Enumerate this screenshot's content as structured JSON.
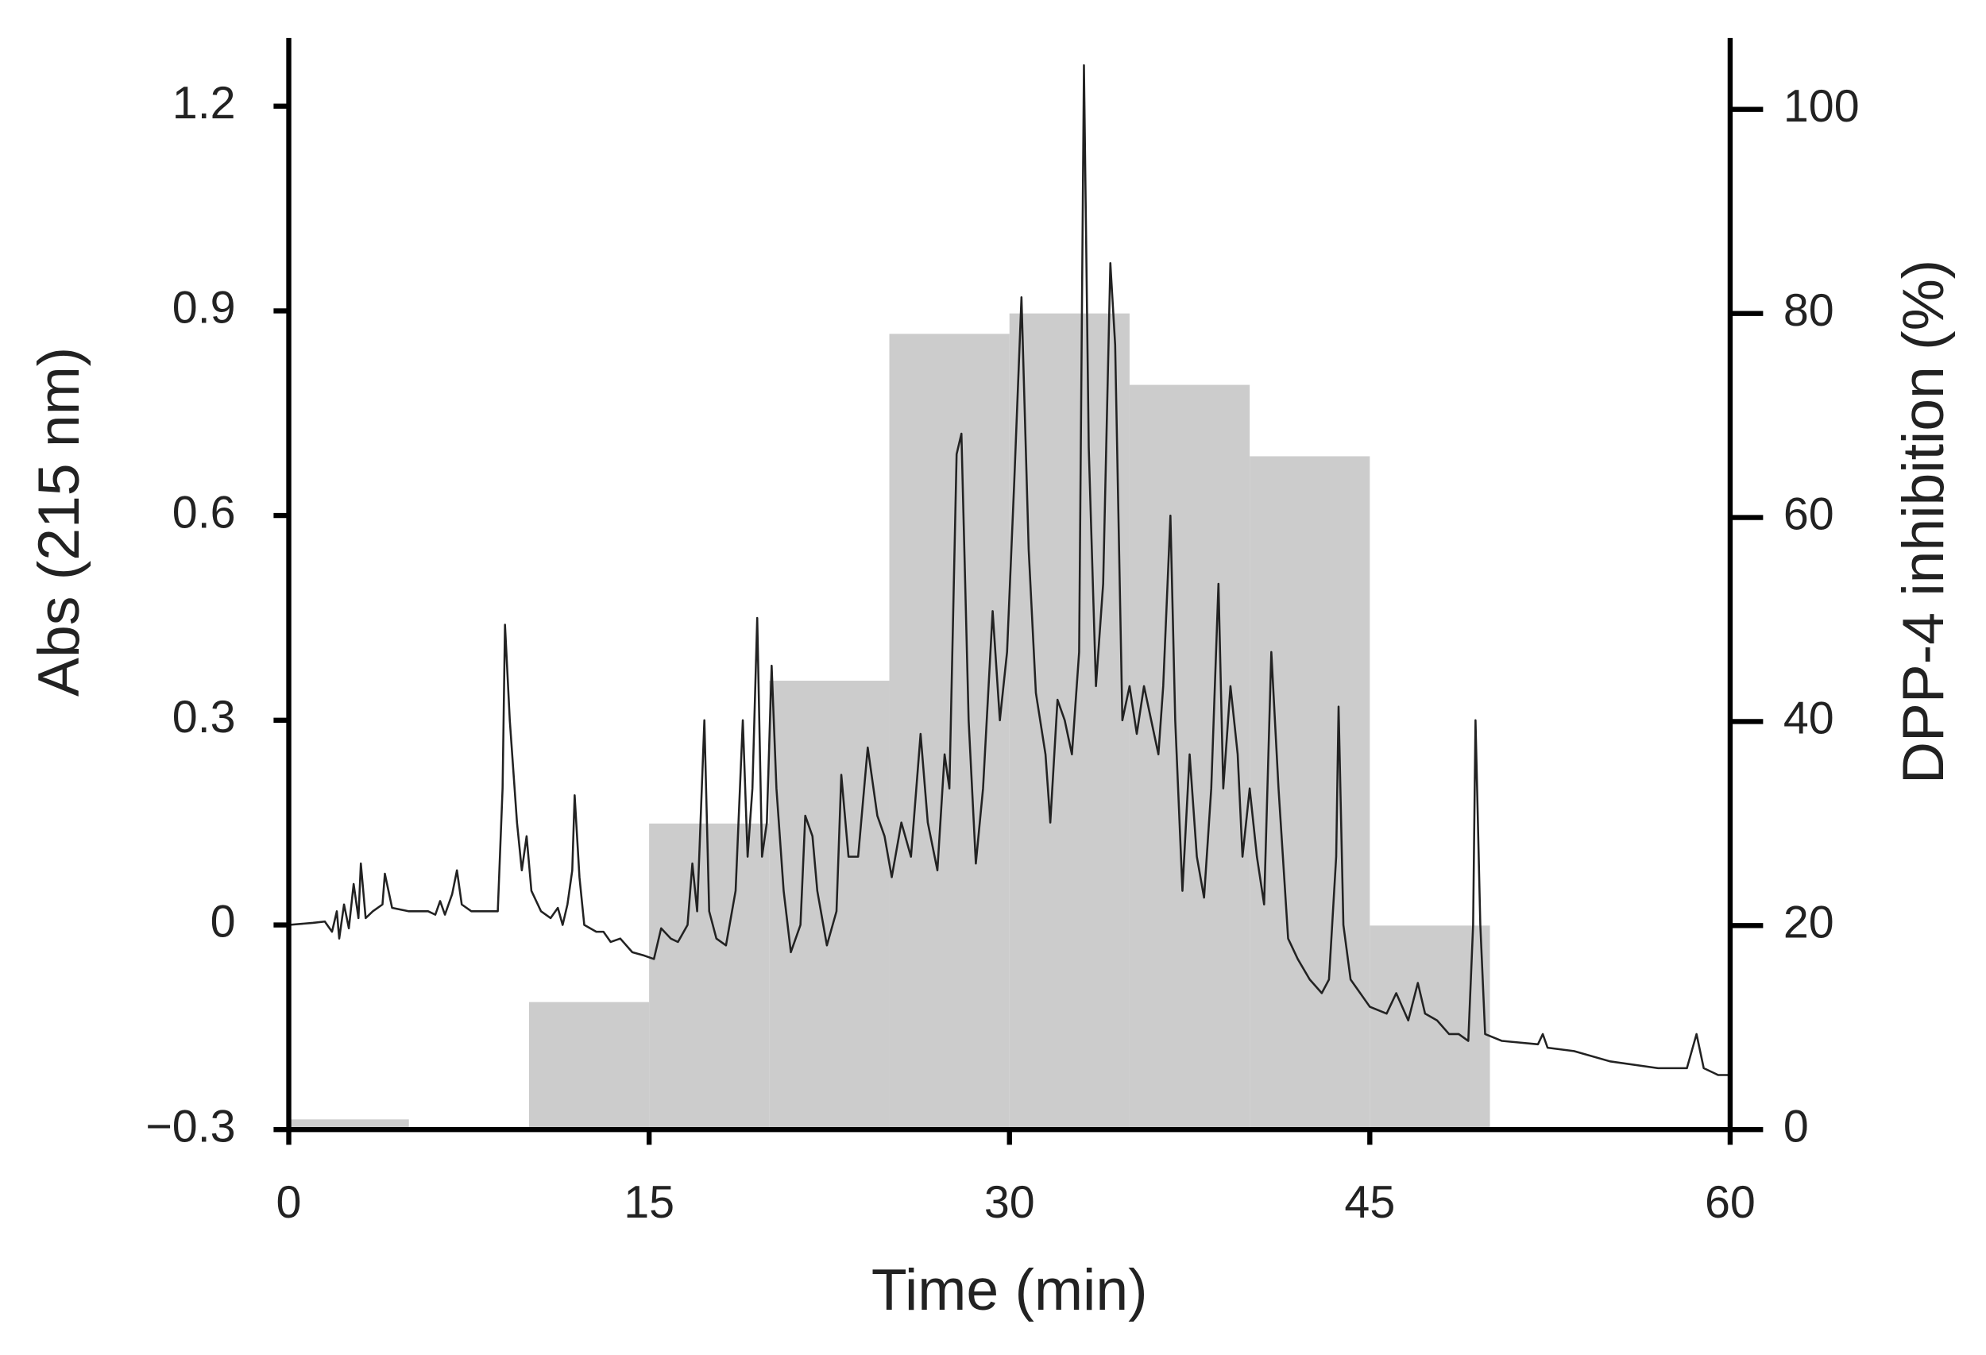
{
  "chart_data": {
    "type": "line",
    "xlabel": "Time (min)",
    "ylabel": "Abs (215 nm)",
    "y2label": "DPP-4 inhibition (%)",
    "xlim": [
      0,
      60
    ],
    "xticks": [
      0,
      15,
      30,
      45,
      60
    ],
    "ylim": [
      -0.3,
      1.3
    ],
    "yticks": [
      {
        "value": -0.3,
        "label": "−0.3"
      },
      0,
      0.3,
      0.6,
      0.9,
      1.2
    ],
    "y2lim": [
      0,
      107
    ],
    "y2ticks": [
      0,
      20,
      40,
      60,
      80,
      100
    ],
    "series": [
      {
        "type": "bar",
        "axis": "y2",
        "color": "#cccccc",
        "bins": [
          0,
          5,
          10,
          15,
          20,
          25,
          30,
          35,
          40,
          45,
          50
        ],
        "values": [
          1,
          0,
          12.5,
          30,
          44,
          78,
          80,
          73,
          66,
          20
        ]
      },
      {
        "type": "line",
        "color": "#222222",
        "x": [
          0,
          1,
          1.5,
          1.8,
          2,
          2.1,
          2.3,
          2.5,
          2.7,
          2.9,
          3.0,
          3.2,
          3.5,
          3.9,
          4.0,
          4.3,
          5.0,
          5.5,
          5.8,
          6.1,
          6.3,
          6.5,
          6.8,
          7.0,
          7.2,
          7.6,
          8.5,
          8.7,
          8.9,
          9.0,
          9.2,
          9.5,
          9.7,
          9.9,
          10.1,
          10.5,
          10.9,
          11.2,
          11.4,
          11.6,
          11.8,
          11.9,
          12.1,
          12.3,
          12.8,
          13.1,
          13.4,
          13.8,
          14.3,
          14.8,
          15.2,
          15.5,
          15.9,
          16.2,
          16.6,
          16.8,
          17.0,
          17.3,
          17.5,
          17.8,
          18.2,
          18.6,
          18.9,
          19.1,
          19.3,
          19.5,
          19.7,
          19.9,
          20.1,
          20.3,
          20.6,
          20.9,
          21.3,
          21.5,
          21.8,
          22.0,
          22.4,
          22.8,
          23.0,
          23.3,
          23.7,
          24.1,
          24.5,
          24.8,
          25.1,
          25.5,
          25.9,
          26.3,
          26.6,
          27.0,
          27.3,
          27.5,
          27.8,
          28.0,
          28.3,
          28.6,
          28.9,
          29.3,
          29.6,
          29.9,
          30.2,
          30.5,
          30.8,
          31.1,
          31.5,
          31.7,
          32.0,
          32.3,
          32.6,
          32.9,
          33.1,
          33.3,
          33.6,
          33.9,
          34.2,
          34.4,
          34.7,
          35.0,
          35.3,
          35.6,
          35.9,
          36.2,
          36.4,
          36.7,
          36.9,
          37.2,
          37.5,
          37.8,
          38.1,
          38.4,
          38.7,
          38.9,
          39.2,
          39.5,
          39.7,
          40.0,
          40.3,
          40.6,
          40.9,
          41.2,
          41.6,
          42.0,
          42.5,
          43.0,
          43.3,
          43.6,
          43.7,
          43.9,
          44.2,
          44.6,
          45.0,
          45.7,
          46.1,
          46.6,
          47.0,
          47.3,
          47.8,
          48.3,
          48.7,
          49.1,
          49.3,
          49.4,
          49.6,
          49.8,
          50.5,
          52.0,
          52.2,
          52.4,
          53.5,
          55,
          57,
          58.2,
          58.6,
          58.9,
          59.5,
          60
        ],
        "values": [
          0,
          0.003,
          0.005,
          -0.01,
          0.02,
          -0.02,
          0.03,
          -0.005,
          0.06,
          0.01,
          0.09,
          0.01,
          0.02,
          0.03,
          0.075,
          0.025,
          0.02,
          0.02,
          0.02,
          0.015,
          0.035,
          0.015,
          0.045,
          0.08,
          0.03,
          0.02,
          0.02,
          0.02,
          0.2,
          0.44,
          0.3,
          0.15,
          0.08,
          0.13,
          0.05,
          0.02,
          0.01,
          0.025,
          0.0,
          0.03,
          0.08,
          0.19,
          0.07,
          0.0,
          -0.01,
          -0.01,
          -0.025,
          -0.02,
          -0.04,
          -0.045,
          -0.05,
          -0.005,
          -0.02,
          -0.025,
          0.0,
          0.09,
          0.02,
          0.3,
          0.02,
          -0.02,
          -0.03,
          0.05,
          0.3,
          0.1,
          0.2,
          0.45,
          0.1,
          0.15,
          0.38,
          0.2,
          0.05,
          -0.04,
          0.0,
          0.16,
          0.13,
          0.05,
          -0.03,
          0.02,
          0.22,
          0.1,
          0.1,
          0.26,
          0.16,
          0.13,
          0.07,
          0.15,
          0.1,
          0.28,
          0.15,
          0.08,
          0.25,
          0.2,
          0.69,
          0.72,
          0.3,
          0.09,
          0.2,
          0.46,
          0.3,
          0.4,
          0.65,
          0.92,
          0.55,
          0.34,
          0.25,
          0.15,
          0.33,
          0.3,
          0.25,
          0.4,
          1.26,
          0.7,
          0.35,
          0.5,
          0.97,
          0.85,
          0.3,
          0.35,
          0.28,
          0.35,
          0.3,
          0.25,
          0.35,
          0.6,
          0.3,
          0.05,
          0.25,
          0.1,
          0.04,
          0.2,
          0.5,
          0.2,
          0.35,
          0.25,
          0.1,
          0.2,
          0.1,
          0.03,
          0.4,
          0.2,
          -0.02,
          -0.05,
          -0.08,
          -0.1,
          -0.08,
          0.1,
          0.32,
          0.0,
          -0.08,
          -0.1,
          -0.12,
          -0.13,
          -0.1,
          -0.14,
          -0.085,
          -0.13,
          -0.14,
          -0.16,
          -0.16,
          -0.17,
          0.0,
          0.3,
          0.0,
          -0.16,
          -0.17,
          -0.175,
          -0.16,
          -0.18,
          -0.185,
          -0.2,
          -0.21,
          -0.21,
          -0.16,
          -0.21,
          -0.22,
          -0.22
        ]
      }
    ]
  }
}
